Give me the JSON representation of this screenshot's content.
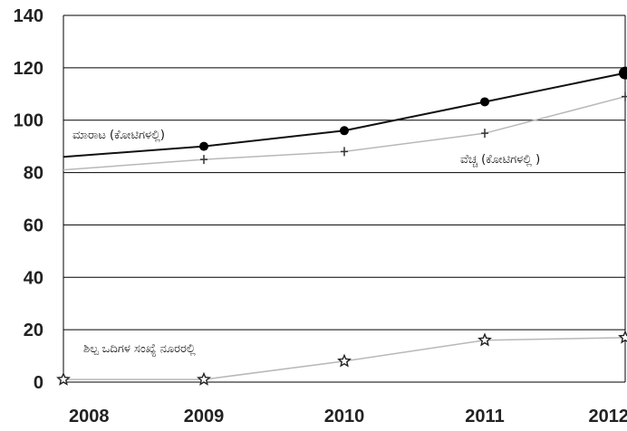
{
  "chart_data": {
    "type": "line",
    "title": "",
    "xlabel": "",
    "ylabel": "",
    "x": [
      "2008",
      "2009",
      "2010",
      "2011",
      "2012"
    ],
    "ylim": [
      0,
      140
    ],
    "y_ticks": [
      0,
      20,
      40,
      60,
      80,
      100,
      120,
      140
    ],
    "grid": "horizontal",
    "series": [
      {
        "name": "ಮಾರಾಟ (ಕೋಟಿಗಳಲ್ಲಿ)",
        "values": [
          86,
          90,
          96,
          107,
          118
        ],
        "marker": "circle",
        "color": "#111111"
      },
      {
        "name": "ವೆಚ್ಚ (ಕೋಟಿಗಳಲ್ಲಿ )",
        "values": [
          81,
          85,
          88,
          95,
          109
        ],
        "marker": "cross",
        "color": "#b8b8b8"
      },
      {
        "name": "ಶಿಲ್ಪ ಒದಿಗಳ ಸಂಖ್ಯೆ ನೂರರಲ್ಲಿ",
        "values": [
          1,
          1,
          8,
          16,
          17
        ],
        "marker": "star",
        "color": "#b8b8b8"
      }
    ]
  }
}
